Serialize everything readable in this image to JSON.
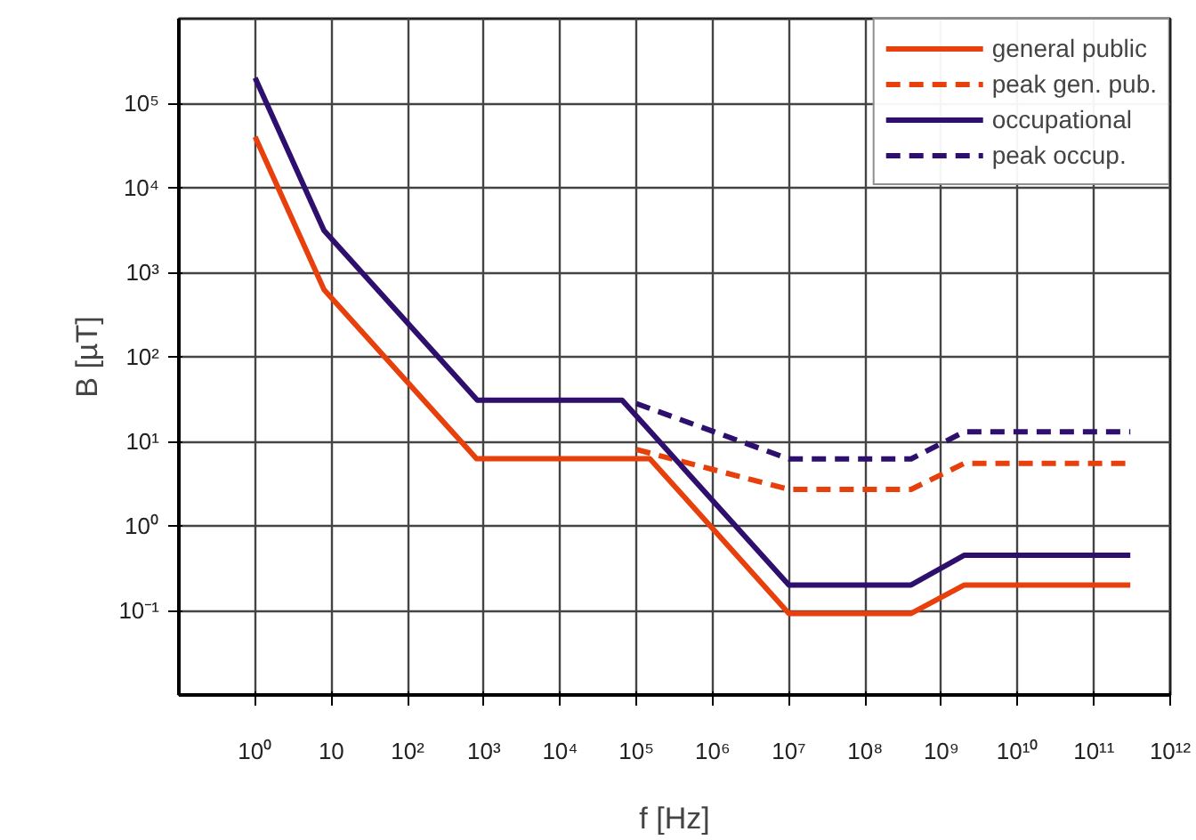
{
  "chart_data": {
    "type": "line",
    "xlabel": "f [Hz]",
    "ylabel": "B [µT]",
    "log": "xy",
    "grid": true,
    "legend": "top right",
    "marker": "none",
    "xlim": [
      0.1,
      1000000000000.0
    ],
    "ylim": [
      0.01,
      1000000.0
    ],
    "xticks": [
      {
        "value": 1,
        "label": "10⁰"
      },
      {
        "value": 10,
        "label": "10"
      },
      {
        "value": 100,
        "label": "10²"
      },
      {
        "value": 1000,
        "label": "10³"
      },
      {
        "value": 10000,
        "label": "10⁴"
      },
      {
        "value": 100000,
        "label": "10⁵"
      },
      {
        "value": 1000000,
        "label": "10⁶"
      },
      {
        "value": 10000000,
        "label": "10⁷"
      },
      {
        "value": 100000000,
        "label": "10⁸"
      },
      {
        "value": 1000000000,
        "label": "10⁹"
      },
      {
        "value": 10000000000,
        "label": "10¹⁰"
      },
      {
        "value": 100000000000,
        "label": "10¹¹"
      },
      {
        "value": 1000000000000,
        "label": "10¹²"
      }
    ],
    "yticks": [
      {
        "value": 0.1,
        "label": "10⁻¹"
      },
      {
        "value": 1,
        "label": "10⁰"
      },
      {
        "value": 10,
        "label": "10¹"
      },
      {
        "value": 100,
        "label": "10²"
      },
      {
        "value": 1000,
        "label": "10³"
      },
      {
        "value": 10000,
        "label": "10⁴"
      },
      {
        "value": 100000,
        "label": "10⁵"
      }
    ],
    "series": [
      {
        "name": "general public",
        "color": "#e8400c",
        "line_style": "solid",
        "x": [
          1,
          8,
          800,
          150000,
          10000000,
          400000000,
          2000000000,
          300000000000
        ],
        "values": [
          40000,
          625,
          6.25,
          6.25,
          0.092,
          0.092,
          0.2,
          0.2
        ]
      },
      {
        "name": "peak gen. pub.",
        "color": "#e8400c",
        "line_style": "dashed",
        "x": [
          100000,
          10000000,
          400000000,
          2000000000,
          300000000000
        ],
        "values": [
          8,
          2.7,
          2.7,
          5.5,
          5.5
        ]
      },
      {
        "name": "occupational",
        "color": "#2e0f6e",
        "line_style": "solid",
        "x": [
          1,
          8,
          820,
          65000,
          10000000,
          400000000,
          2000000000,
          300000000000
        ],
        "values": [
          200000,
          3125,
          30.7,
          30.7,
          0.2,
          0.2,
          0.45,
          0.45
        ]
      },
      {
        "name": "peak occup.",
        "color": "#2e0f6e",
        "line_style": "dashed",
        "x": [
          100000,
          10000000,
          400000000,
          2000000000,
          300000000000
        ],
        "values": [
          28,
          6.2,
          6.2,
          13,
          13
        ]
      }
    ]
  }
}
